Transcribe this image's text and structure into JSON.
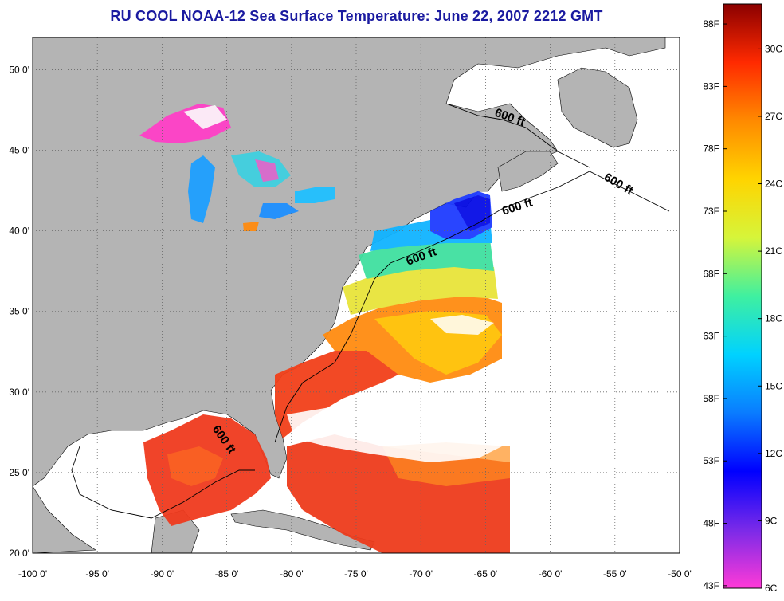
{
  "title": "RU COOL  NOAA-12  Sea Surface Temperature:  June 22, 2007 2212 GMT",
  "map": {
    "lon_range": [
      -100,
      -50
    ],
    "lat_range": [
      20,
      52
    ],
    "lon_ticks": [
      -100,
      -95,
      -90,
      -85,
      -80,
      -75,
      -70,
      -65,
      -60,
      -55,
      -50
    ],
    "lon_tick_labels": [
      "-100 0'",
      "-95 0'",
      "-90 0'",
      "-85 0'",
      "-80 0'",
      "-75 0'",
      "-70 0'",
      "-65 0'",
      "-60 0'",
      "-55 0'",
      "-50 0'"
    ],
    "lat_ticks": [
      20,
      25,
      30,
      35,
      40,
      45,
      50
    ],
    "lat_tick_labels": [
      "20 0'",
      "25 0'",
      "30 0'",
      "35 0'",
      "40 0'",
      "45 0'",
      "50 0'"
    ],
    "grid": "dotted",
    "isobath_label": "600 ft",
    "colors": {
      "land": "#b4b4b4",
      "ocean_no_data": "#ffffff",
      "coast": "#000000"
    }
  },
  "colorbar": {
    "range_c": [
      6,
      32
    ],
    "celsius_labels": [
      "6C",
      "9C",
      "12C",
      "15C",
      "18C",
      "21C",
      "24C",
      "27C",
      "30C"
    ],
    "celsius_values": [
      6,
      9,
      12,
      15,
      18,
      21,
      24,
      27,
      30
    ],
    "fahrenheit_labels": [
      "43F",
      "48F",
      "53F",
      "58F",
      "63F",
      "68F",
      "73F",
      "78F",
      "83F",
      "88F"
    ],
    "fahrenheit_values": [
      43,
      48,
      53,
      58,
      63,
      68,
      73,
      78,
      83,
      88
    ],
    "stops": [
      "#ff3ad7",
      "#7a2ae8",
      "#0000ff",
      "#0a7cff",
      "#00d2ff",
      "#3ff0a0",
      "#d6f53a",
      "#ffd400",
      "#ff8a00",
      "#ff2a00",
      "#8b0000"
    ]
  }
}
